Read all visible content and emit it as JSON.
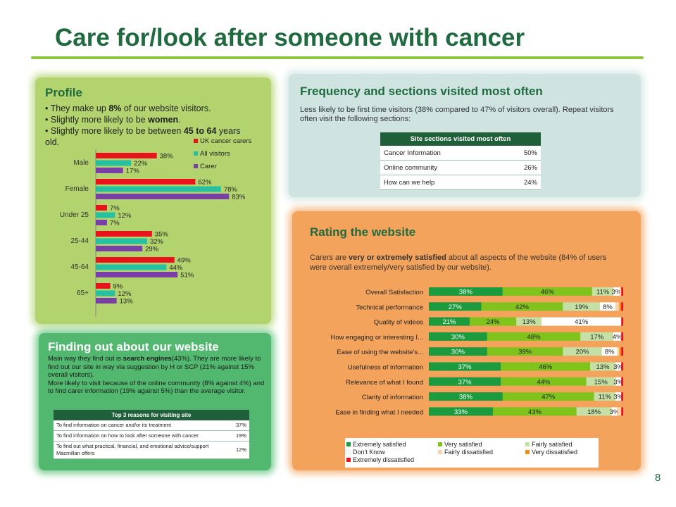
{
  "title": "Care for/look after someone with cancer",
  "page_number": "8",
  "colors": {
    "brand_green": "#1f6b3f",
    "accent_green": "#8dc63f"
  },
  "profile": {
    "heading": "Profile",
    "bullets": [
      {
        "pre": "• They make up ",
        "bold": "8%",
        "post": " of our website visitors."
      },
      {
        "pre": "• Slightly more likely to be ",
        "bold": "women",
        "post": "."
      },
      {
        "pre": "• Slightly more likely to be between ",
        "bold": "45 to 64",
        "post": " years old."
      }
    ]
  },
  "finding": {
    "heading": "Finding out about our website",
    "text1_pre": "Main way they find out is ",
    "text1_bold": "search engines",
    "text1_post": "(43%). They are more likely to find out our site in way via suggestion by H or SCP (21% against 15% overall visitors).",
    "text2": "More likely to visit because of the online community (8% against 4%) and  to find carer information (19% against 5%) than the average visitor.",
    "table_header": "Top 3 reasons for visiting site",
    "rows": [
      {
        "label": "To find information on cancer and/or its treatment",
        "value": "37%"
      },
      {
        "label": "To find information on how to look after someone with cancer",
        "value": "19%"
      },
      {
        "label": "To find out what practical, financial, and emotional advice/support Macmillan offers",
        "value": "12%"
      }
    ]
  },
  "frequency": {
    "heading": "Frequency and sections visited most often",
    "text": "Less likely to be first time visitors (38% compared to 47% of visitors overall). Repeat visitors often visit the following sections:",
    "table_header": "Site sections visited most often",
    "rows": [
      {
        "label": "Cancer Information",
        "value": "50%"
      },
      {
        "label": "Online community",
        "value": "26%"
      },
      {
        "label": "How can we help",
        "value": "24%"
      }
    ]
  },
  "rating": {
    "heading": "Rating the website",
    "text_pre": "Carers are ",
    "text_bold": "very or extremely satisfied",
    "text_post": " about all aspects of the website (84% of users were overall extremely/very satisfied by our website)."
  },
  "chart_data": [
    {
      "type": "bar",
      "orientation": "horizontal",
      "categories": [
        "Male",
        "Female",
        "Under 25",
        "25-44",
        "45-64",
        "65+"
      ],
      "series": [
        {
          "name": "UK cancer carers",
          "color": "#e8141b",
          "values": [
            38,
            62,
            7,
            35,
            49,
            9
          ]
        },
        {
          "name": "All visitors",
          "color": "#26bfa0",
          "values": [
            22,
            78,
            12,
            32,
            44,
            12
          ]
        },
        {
          "name": "Carer",
          "color": "#7a3fa6",
          "values": [
            17,
            83,
            7,
            29,
            51,
            13
          ]
        }
      ],
      "value_suffix": "%",
      "xlim": [
        0,
        100
      ],
      "legend": "top-right"
    },
    {
      "type": "bar",
      "orientation": "horizontal",
      "stacked": true,
      "categories": [
        "Overall Satisfaction",
        "Technical performance",
        "Quality of videos",
        "How engaging or interesting I...",
        "Ease of using the website's...",
        "Usefulness of information",
        "Relevance of what I found",
        "Clarity of information",
        "Ease in finding what I needed"
      ],
      "series": [
        {
          "name": "Extremely satisfied",
          "color": "#1b9a3e",
          "values": [
            38,
            27,
            21,
            30,
            30,
            37,
            37,
            38,
            33
          ]
        },
        {
          "name": "Very satisfied",
          "color": "#7fc31c",
          "values": [
            46,
            42,
            24,
            48,
            39,
            46,
            44,
            47,
            43
          ]
        },
        {
          "name": "Fairly satisfied",
          "color": "#c5e0a5",
          "values": [
            11,
            19,
            13,
            17,
            20,
            13,
            15,
            11,
            18
          ]
        },
        {
          "name": "Don't Know",
          "color": "#ffffff",
          "values": [
            3,
            8,
            41,
            4,
            8,
            3,
            3,
            3,
            3
          ]
        },
        {
          "name": "Fairly dissatisfied",
          "color": "#fbd3a9",
          "values": [
            1,
            2,
            0,
            0,
            1,
            0,
            0,
            0,
            2
          ]
        },
        {
          "name": "Very dissatisfied",
          "color": "#f28c1b",
          "values": [
            0,
            1,
            0,
            0,
            1,
            0,
            0,
            0,
            0
          ]
        },
        {
          "name": "Extremely dissatisfied",
          "color": "#e8141b",
          "values": [
            1,
            1,
            1,
            1,
            1,
            1,
            1,
            1,
            1
          ]
        }
      ],
      "labels": [
        [
          "38%",
          "46%",
          "11%",
          "3%",
          "",
          "",
          ""
        ],
        [
          "27%",
          "42%",
          "19%",
          "8%",
          "",
          "",
          ""
        ],
        [
          "21%",
          "24%",
          "13%",
          "41%",
          "",
          "",
          ""
        ],
        [
          "30%",
          "48%",
          "17%",
          "4%",
          "",
          "",
          ""
        ],
        [
          "30%",
          "39%",
          "20%",
          "8%",
          "",
          "",
          ""
        ],
        [
          "37%",
          "46%",
          "13%",
          "3%",
          "",
          "",
          ""
        ],
        [
          "37%",
          "44%",
          "15%",
          "3%",
          "",
          "",
          ""
        ],
        [
          "38%",
          "47%",
          "11%",
          "3%",
          "",
          "",
          ""
        ],
        [
          "33%",
          "43%",
          "18%",
          "3%",
          "",
          "",
          ""
        ]
      ],
      "xlim": [
        0,
        100
      ],
      "legend": "bottom"
    }
  ]
}
